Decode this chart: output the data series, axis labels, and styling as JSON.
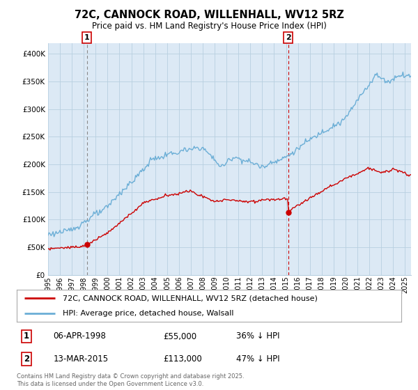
{
  "title": "72C, CANNOCK ROAD, WILLENHALL, WV12 5RZ",
  "subtitle": "Price paid vs. HM Land Registry's House Price Index (HPI)",
  "ylim": [
    0,
    420000
  ],
  "yticks": [
    0,
    50000,
    100000,
    150000,
    200000,
    250000,
    300000,
    350000,
    400000
  ],
  "xlim_start": 1995.0,
  "xlim_end": 2025.5,
  "hpi_color": "#6baed6",
  "price_color": "#cc0000",
  "marker1_x": 1998.27,
  "marker1_y": 55000,
  "marker2_x": 2015.19,
  "marker2_y": 113000,
  "annotation1_date": "06-APR-1998",
  "annotation1_price": "£55,000",
  "annotation1_hpi": "36% ↓ HPI",
  "annotation2_date": "13-MAR-2015",
  "annotation2_price": "£113,000",
  "annotation2_hpi": "47% ↓ HPI",
  "legend_line1": "72C, CANNOCK ROAD, WILLENHALL, WV12 5RZ (detached house)",
  "legend_line2": "HPI: Average price, detached house, Walsall",
  "footer": "Contains HM Land Registry data © Crown copyright and database right 2025.\nThis data is licensed under the Open Government Licence v3.0.",
  "background_color": "#ffffff",
  "chart_bg_color": "#dce9f5",
  "grid_color": "#b8cfe0"
}
